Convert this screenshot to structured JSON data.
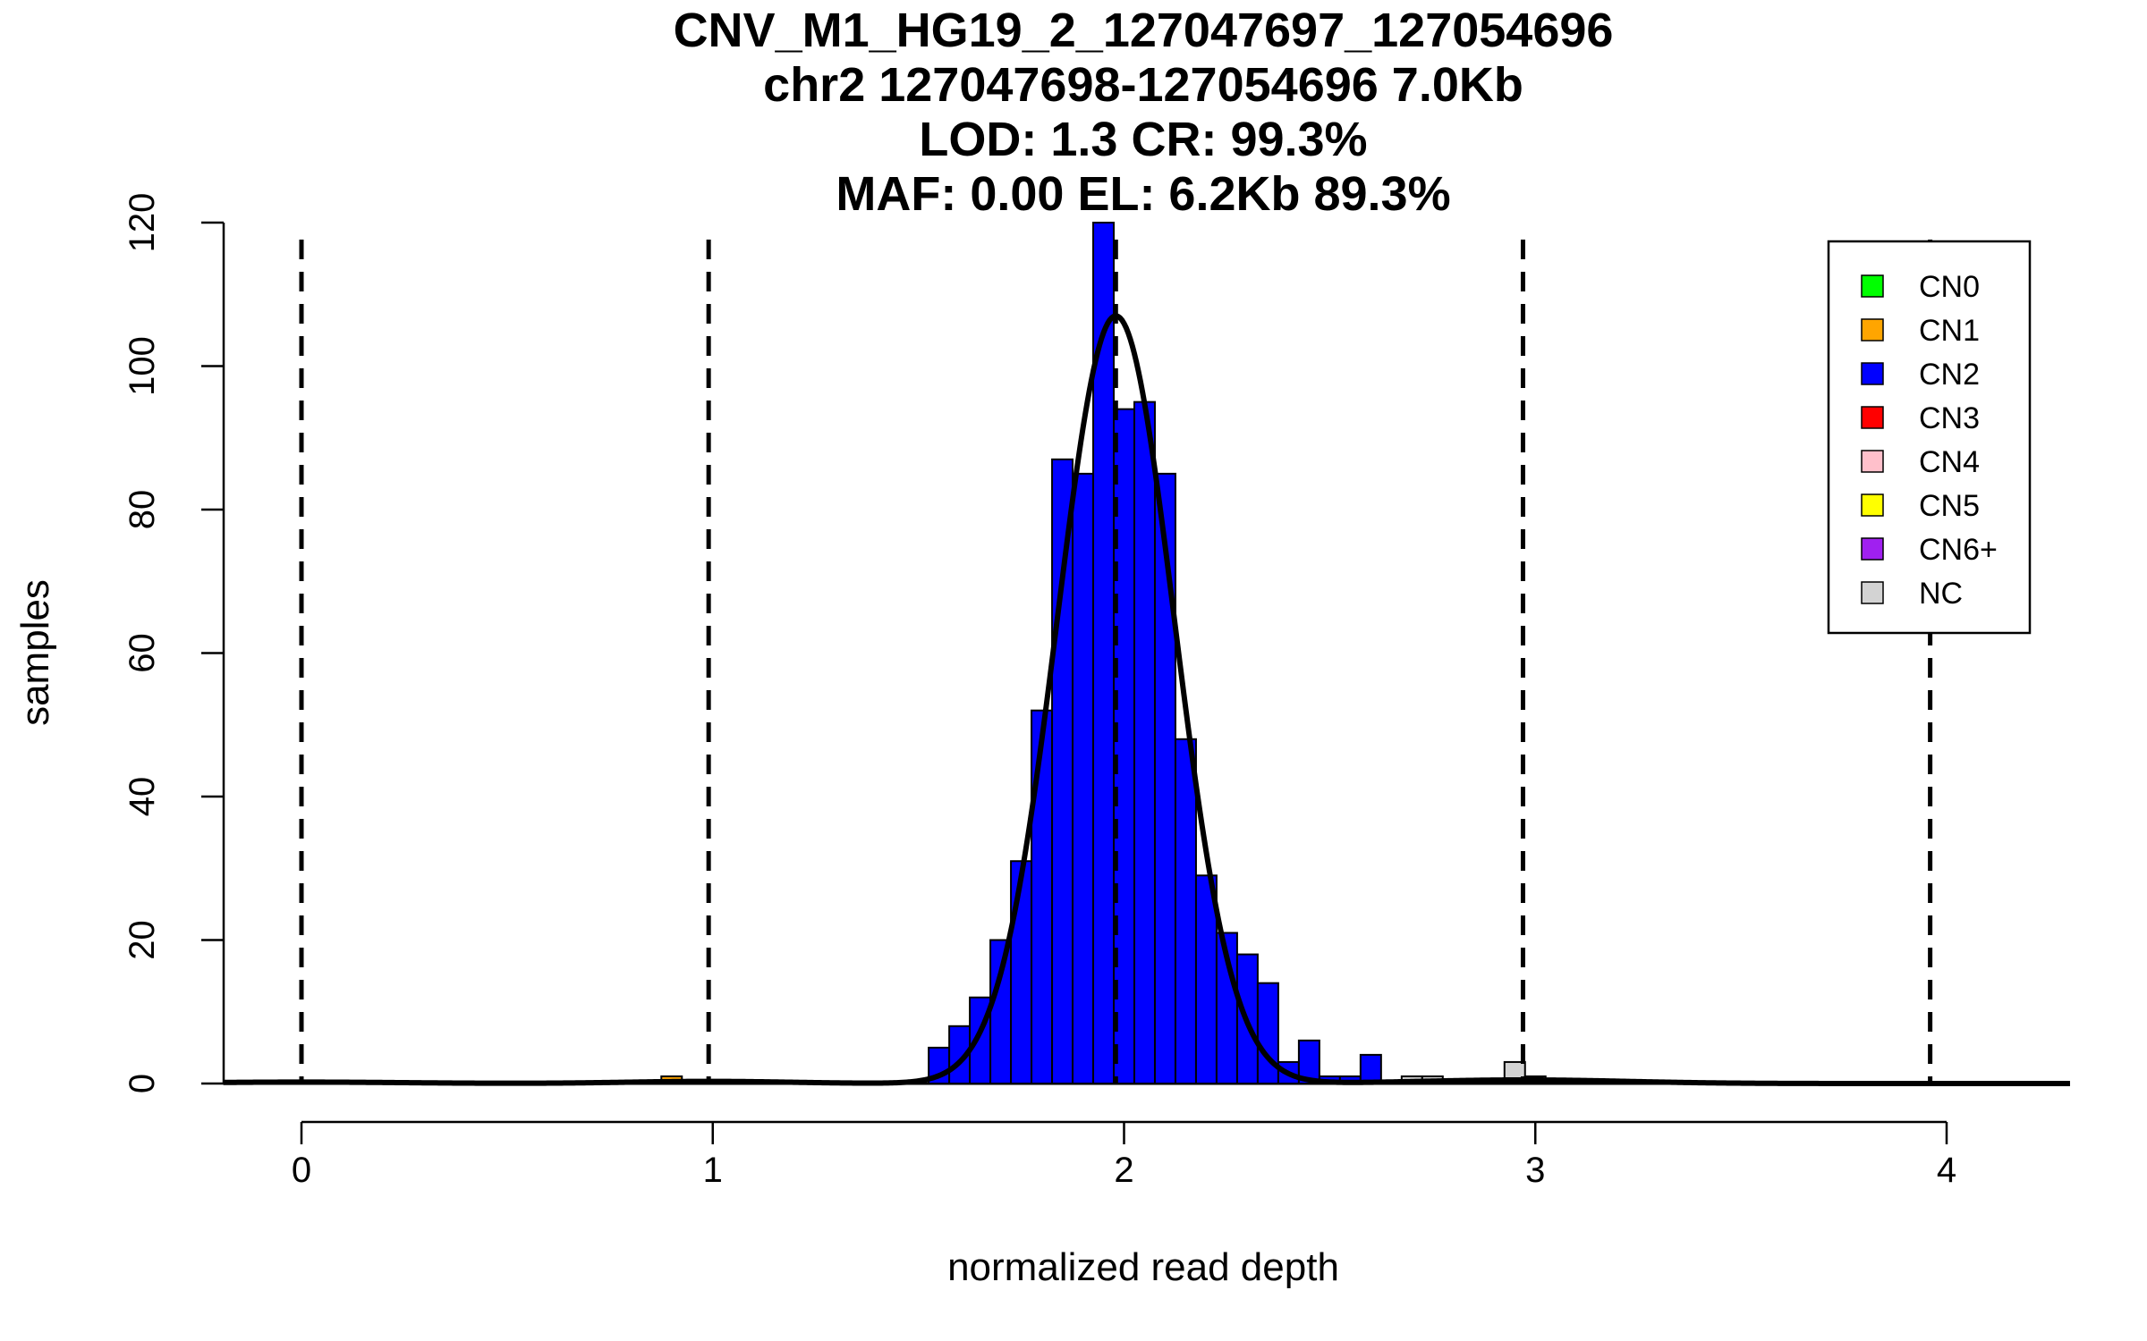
{
  "chart_data": {
    "type": "histogram",
    "title_lines": [
      "CNV_M1_HG19_2_127047697_127054696",
      "chr2 127047698-127054696 7.0Kb",
      "LOD: 1.3 CR: 99.3%",
      "MAF: 0.00 EL: 6.2Kb 89.3%"
    ],
    "xlabel": "normalized read depth",
    "ylabel": "samples",
    "xlim": [
      -0.19,
      4.3
    ],
    "ylim": [
      0,
      120
    ],
    "x_ticks": [
      0,
      1,
      2,
      3,
      4
    ],
    "y_ticks": [
      0,
      20,
      40,
      60,
      80,
      100,
      120
    ],
    "bin_width": 0.05,
    "dashed_lines_x": [
      0,
      0.99,
      1.98,
      2.97,
      3.96
    ],
    "bars": [
      {
        "start": 0.875,
        "count": 1,
        "cn": "CN1"
      },
      {
        "start": 1.525,
        "count": 5,
        "cn": "CN2"
      },
      {
        "start": 1.575,
        "count": 8,
        "cn": "CN2"
      },
      {
        "start": 1.625,
        "count": 12,
        "cn": "CN2"
      },
      {
        "start": 1.675,
        "count": 20,
        "cn": "CN2"
      },
      {
        "start": 1.725,
        "count": 31,
        "cn": "CN2"
      },
      {
        "start": 1.775,
        "count": 52,
        "cn": "CN2"
      },
      {
        "start": 1.825,
        "count": 87,
        "cn": "CN2"
      },
      {
        "start": 1.875,
        "count": 85,
        "cn": "CN2"
      },
      {
        "start": 1.925,
        "count": 120,
        "cn": "CN2"
      },
      {
        "start": 1.975,
        "count": 94,
        "cn": "CN2"
      },
      {
        "start": 2.025,
        "count": 95,
        "cn": "CN2"
      },
      {
        "start": 2.075,
        "count": 85,
        "cn": "CN2"
      },
      {
        "start": 2.125,
        "count": 48,
        "cn": "CN2"
      },
      {
        "start": 2.175,
        "count": 29,
        "cn": "CN2"
      },
      {
        "start": 2.225,
        "count": 21,
        "cn": "CN2"
      },
      {
        "start": 2.275,
        "count": 18,
        "cn": "CN2"
      },
      {
        "start": 2.325,
        "count": 14,
        "cn": "CN2"
      },
      {
        "start": 2.375,
        "count": 3,
        "cn": "CN2"
      },
      {
        "start": 2.425,
        "count": 6,
        "cn": "CN2"
      },
      {
        "start": 2.475,
        "count": 1,
        "cn": "CN2"
      },
      {
        "start": 2.525,
        "count": 1,
        "cn": "CN2"
      },
      {
        "start": 2.575,
        "count": 4,
        "cn": "CN2"
      },
      {
        "start": 2.675,
        "count": 1,
        "cn": "NC"
      },
      {
        "start": 2.725,
        "count": 1,
        "cn": "NC"
      },
      {
        "start": 2.925,
        "count": 3,
        "cn": "NC"
      },
      {
        "start": 2.975,
        "count": 1,
        "cn": "NC"
      }
    ],
    "fit_curve": {
      "components": [
        {
          "mean": 1.98,
          "sd": 0.142,
          "peak": 107
        },
        {
          "mean": 0.99,
          "sd": 0.2,
          "peak": 0.3
        },
        {
          "mean": 2.97,
          "sd": 0.25,
          "peak": 0.5
        },
        {
          "mean": 0.0,
          "sd": 0.25,
          "peak": 0.2
        }
      ]
    },
    "legend": [
      {
        "label": "CN0",
        "color": "#00ff00"
      },
      {
        "label": "CN1",
        "color": "#ffa500"
      },
      {
        "label": "CN2",
        "color": "#0000ff"
      },
      {
        "label": "CN3",
        "color": "#ff0000"
      },
      {
        "label": "CN4",
        "color": "#ffc0cb"
      },
      {
        "label": "CN5",
        "color": "#ffff00"
      },
      {
        "label": "CN6+",
        "color": "#a020f0"
      },
      {
        "label": "NC",
        "color": "#d3d3d3"
      }
    ],
    "legend_position": "top-right"
  }
}
